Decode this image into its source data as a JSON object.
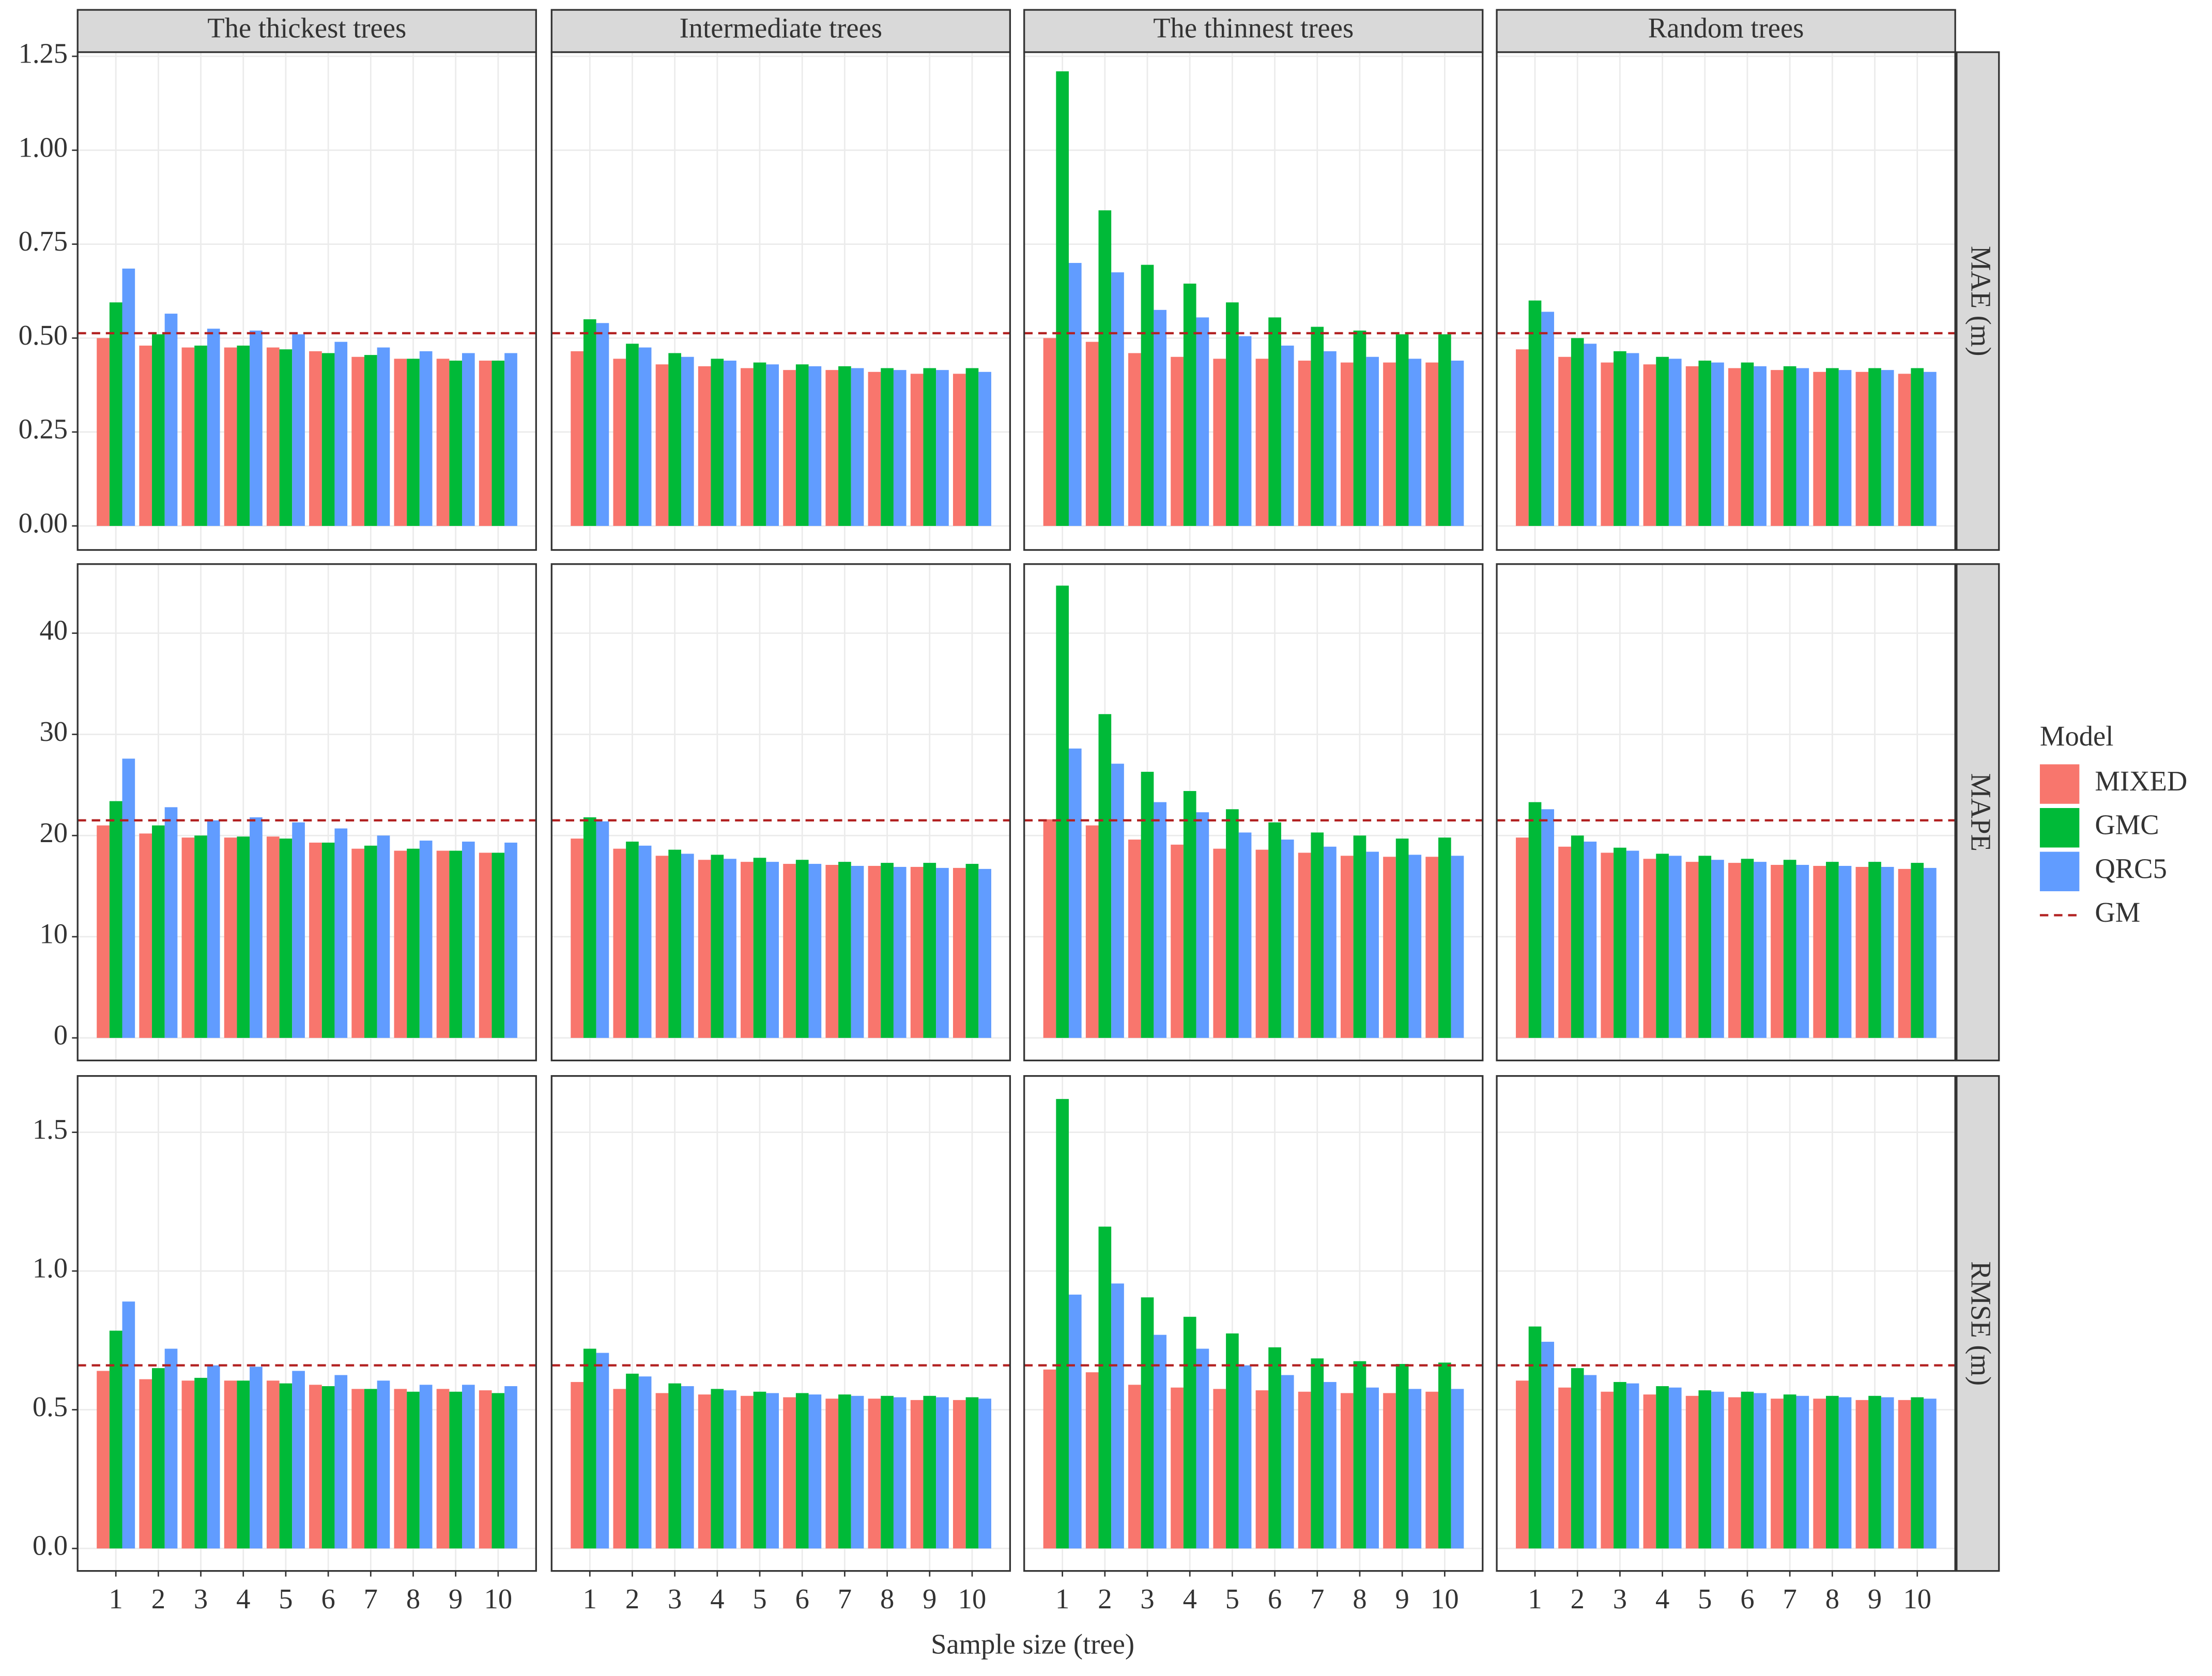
{
  "chart_data": {
    "type": "bar",
    "xlabel": "Sample size (tree)",
    "legend_title": "Model",
    "categories": [
      "1",
      "2",
      "3",
      "4",
      "5",
      "6",
      "7",
      "8",
      "9",
      "10"
    ],
    "panel_titles": [
      "The thickest trees",
      "Intermediate trees",
      "The thinnest trees",
      "Random trees"
    ],
    "series": [
      {
        "name": "MIXED",
        "color": "#F8766D"
      },
      {
        "name": "GMC",
        "color": "#00BA38"
      },
      {
        "name": "QRC5",
        "color": "#619CFF"
      }
    ],
    "reference": {
      "name": "GM",
      "color": "#B22222",
      "style": "dashed"
    },
    "grid": true,
    "rows": [
      {
        "label": "MAE (m)",
        "ylim": [
          -0.064,
          1.261
        ],
        "yticks": [
          {
            "value": 0,
            "label": "0.00"
          },
          0.25,
          {
            "value": 0.5,
            "label": "0.50"
          },
          0.75,
          {
            "value": 1,
            "label": "1.00"
          },
          1.25
        ],
        "reference": 0.513,
        "values": [
          [
            [
              0.5,
              0.48,
              0.475,
              0.475,
              0.475,
              0.465,
              0.45,
              0.445,
              0.445,
              0.44
            ],
            [
              0.595,
              0.51,
              0.48,
              0.48,
              0.47,
              0.46,
              0.455,
              0.445,
              0.44,
              0.44
            ],
            [
              0.685,
              0.565,
              0.525,
              0.52,
              0.51,
              0.49,
              0.475,
              0.465,
              0.46,
              0.46
            ]
          ],
          [
            [
              0.465,
              0.445,
              0.43,
              0.425,
              0.42,
              0.415,
              0.415,
              0.41,
              0.405,
              0.405
            ],
            [
              0.55,
              0.485,
              0.46,
              0.445,
              0.435,
              0.43,
              0.425,
              0.42,
              0.42,
              0.42
            ],
            [
              0.54,
              0.475,
              0.45,
              0.44,
              0.43,
              0.425,
              0.42,
              0.415,
              0.415,
              0.41
            ]
          ],
          [
            [
              0.5,
              0.49,
              0.46,
              0.45,
              0.445,
              0.445,
              0.44,
              0.435,
              0.435,
              0.435
            ],
            [
              1.21,
              0.84,
              0.695,
              0.645,
              0.595,
              0.555,
              0.53,
              0.52,
              0.51,
              0.51
            ],
            [
              0.7,
              0.675,
              0.575,
              0.555,
              0.505,
              0.48,
              0.465,
              0.45,
              0.445,
              0.44
            ]
          ],
          [
            [
              0.47,
              0.45,
              0.435,
              0.43,
              0.425,
              0.42,
              0.415,
              0.41,
              0.41,
              0.405
            ],
            [
              0.6,
              0.5,
              0.465,
              0.45,
              0.44,
              0.435,
              0.425,
              0.42,
              0.42,
              0.42
            ],
            [
              0.57,
              0.485,
              0.46,
              0.445,
              0.435,
              0.425,
              0.42,
              0.415,
              0.415,
              0.41
            ]
          ]
        ]
      },
      {
        "label": "MAPE",
        "ylim": [
          -2.23,
          46.83
        ],
        "yticks": [
          0,
          10,
          20,
          30,
          40
        ],
        "reference": 21.5,
        "values": [
          [
            [
              21,
              20.2,
              19.8,
              19.8,
              19.9,
              19.3,
              18.7,
              18.5,
              18.5,
              18.3
            ],
            [
              23.4,
              21,
              20,
              19.9,
              19.7,
              19.3,
              19,
              18.7,
              18.5,
              18.3
            ],
            [
              27.6,
              22.8,
              21.5,
              21.8,
              21.3,
              20.7,
              20,
              19.5,
              19.4,
              19.3
            ]
          ],
          [
            [
              19.7,
              18.7,
              18,
              17.6,
              17.4,
              17.2,
              17.1,
              17,
              16.9,
              16.8
            ],
            [
              21.8,
              19.4,
              18.6,
              18.1,
              17.8,
              17.6,
              17.4,
              17.3,
              17.3,
              17.2
            ],
            [
              21.4,
              19,
              18.2,
              17.7,
              17.4,
              17.2,
              17,
              16.9,
              16.8,
              16.7
            ]
          ],
          [
            [
              21.6,
              21,
              19.6,
              19.1,
              18.7,
              18.6,
              18.3,
              18,
              17.9,
              17.9
            ],
            [
              44.7,
              32,
              26.3,
              24.4,
              22.6,
              21.3,
              20.3,
              20,
              19.7,
              19.8
            ],
            [
              28.6,
              27.1,
              23.3,
              22.3,
              20.3,
              19.6,
              18.9,
              18.4,
              18.1,
              18
            ]
          ],
          [
            [
              19.8,
              18.9,
              18.3,
              17.7,
              17.4,
              17.3,
              17.1,
              17,
              16.9,
              16.7
            ],
            [
              23.3,
              20,
              18.8,
              18.2,
              18,
              17.7,
              17.6,
              17.4,
              17.4,
              17.3
            ],
            [
              22.6,
              19.4,
              18.5,
              18,
              17.6,
              17.4,
              17.1,
              17,
              16.9,
              16.8
            ]
          ]
        ]
      },
      {
        "label": "RMSE (m)",
        "ylim": [
          -0.081,
          1.703
        ],
        "yticks": [
          {
            "value": 0,
            "label": "0.0"
          },
          0.5,
          {
            "value": 1,
            "label": "1.0"
          },
          1.5
        ],
        "reference": 0.66,
        "values": [
          [
            [
              0.64,
              0.61,
              0.605,
              0.605,
              0.605,
              0.59,
              0.575,
              0.575,
              0.575,
              0.57
            ],
            [
              0.785,
              0.65,
              0.615,
              0.605,
              0.595,
              0.585,
              0.575,
              0.565,
              0.565,
              0.56
            ],
            [
              0.89,
              0.72,
              0.66,
              0.655,
              0.64,
              0.625,
              0.605,
              0.59,
              0.59,
              0.585
            ]
          ],
          [
            [
              0.6,
              0.575,
              0.56,
              0.555,
              0.55,
              0.545,
              0.54,
              0.54,
              0.535,
              0.535
            ],
            [
              0.72,
              0.63,
              0.595,
              0.575,
              0.565,
              0.56,
              0.555,
              0.55,
              0.55,
              0.545
            ],
            [
              0.705,
              0.62,
              0.585,
              0.57,
              0.56,
              0.555,
              0.55,
              0.545,
              0.545,
              0.54
            ]
          ],
          [
            [
              0.645,
              0.635,
              0.59,
              0.58,
              0.575,
              0.57,
              0.565,
              0.56,
              0.56,
              0.565
            ],
            [
              1.62,
              1.16,
              0.905,
              0.835,
              0.775,
              0.725,
              0.685,
              0.675,
              0.665,
              0.67
            ],
            [
              0.915,
              0.955,
              0.77,
              0.72,
              0.66,
              0.625,
              0.6,
              0.58,
              0.575,
              0.575
            ]
          ],
          [
            [
              0.605,
              0.58,
              0.565,
              0.555,
              0.55,
              0.545,
              0.54,
              0.54,
              0.535,
              0.535
            ],
            [
              0.8,
              0.65,
              0.6,
              0.585,
              0.57,
              0.565,
              0.555,
              0.55,
              0.55,
              0.545
            ],
            [
              0.745,
              0.625,
              0.595,
              0.58,
              0.565,
              0.56,
              0.55,
              0.545,
              0.545,
              0.54
            ]
          ]
        ]
      }
    ]
  }
}
